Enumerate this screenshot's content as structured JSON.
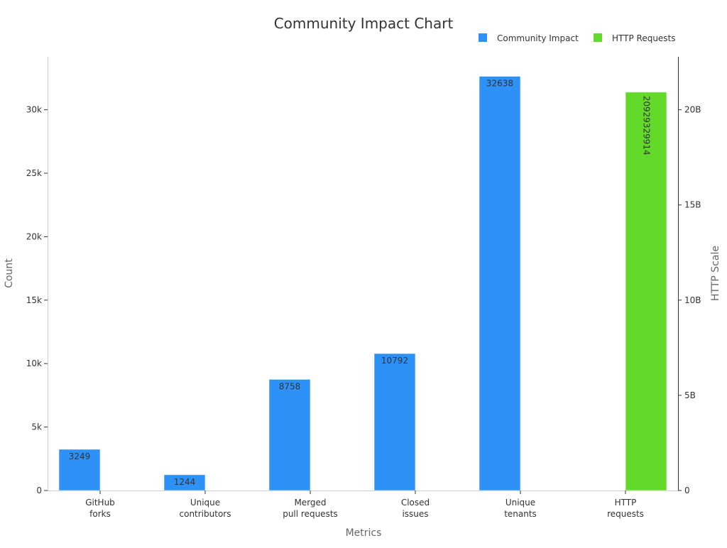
{
  "chart_data": {
    "type": "bar",
    "title": "Community Impact Chart",
    "xlabel": "Metrics",
    "ylabel": "Count",
    "y2label": "HTTP Scale",
    "categories": [
      [
        "GitHub",
        "forks"
      ],
      [
        "Unique",
        "contributors"
      ],
      [
        "Merged",
        "pull requests"
      ],
      [
        "Closed",
        "issues"
      ],
      [
        "Unique",
        "tenants"
      ],
      [
        "HTTP",
        "requests"
      ]
    ],
    "ylim": [
      0,
      33000
    ],
    "y2lim": [
      0,
      22000000000
    ],
    "y_ticks": [
      {
        "value": 0,
        "label": "0"
      },
      {
        "value": 5000,
        "label": "5k"
      },
      {
        "value": 10000,
        "label": "10k"
      },
      {
        "value": 15000,
        "label": "15k"
      },
      {
        "value": 20000,
        "label": "20k"
      },
      {
        "value": 25000,
        "label": "25k"
      },
      {
        "value": 30000,
        "label": "30k"
      }
    ],
    "y2_ticks": [
      {
        "value": 0,
        "label": "0"
      },
      {
        "value": 5000000000,
        "label": "5B"
      },
      {
        "value": 10000000000,
        "label": "10B"
      },
      {
        "value": 15000000000,
        "label": "15B"
      },
      {
        "value": 20000000000,
        "label": "20B"
      }
    ],
    "legend_position": "top-right",
    "grid": false,
    "series": [
      {
        "name": "Community Impact",
        "axis": "left",
        "color": "#2d91f7",
        "values": [
          3249,
          1244,
          8758,
          10792,
          32638,
          null
        ],
        "labels": [
          "3249",
          "1244",
          "8758",
          "10792",
          "32638",
          null
        ]
      },
      {
        "name": "HTTP Requests",
        "axis": "right",
        "color": "#63d92a",
        "values": [
          null,
          null,
          null,
          null,
          null,
          20929329914
        ],
        "labels": [
          null,
          null,
          null,
          null,
          null,
          "20929329914"
        ]
      }
    ]
  }
}
